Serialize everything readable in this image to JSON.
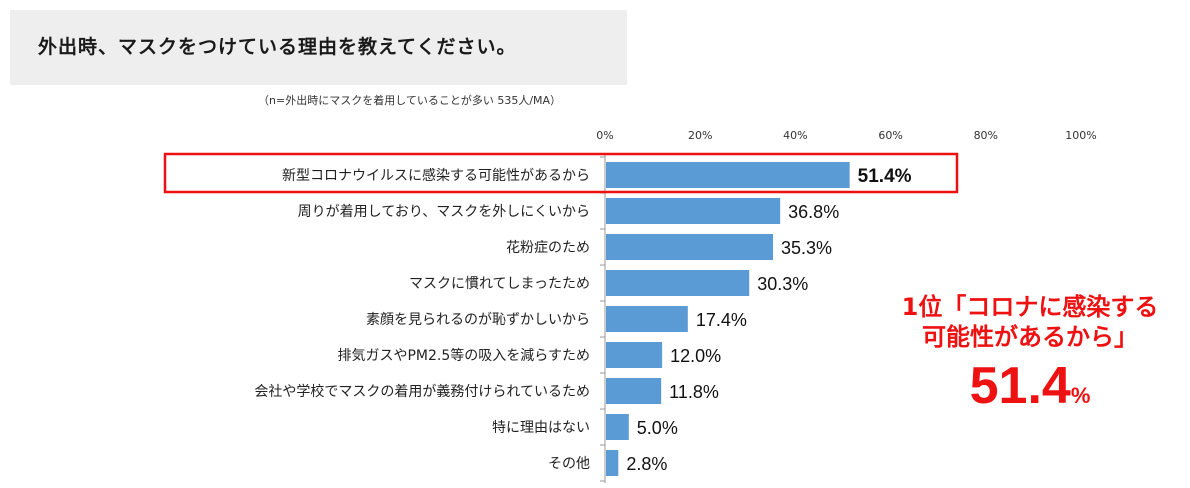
{
  "header": {
    "title": "外出時、マスクをつけている理由を教えてください。",
    "note": "（n=外出時にマスクを着用していることが多い 535人/MA）"
  },
  "chart_data": {
    "type": "bar",
    "orientation": "horizontal",
    "title": "外出時、マスクをつけている理由を教えてください。",
    "categories": [
      "新型コロナウイルスに感染する可能性があるから",
      "周りが着用しており、マスクを外しにくいから",
      "花粉症のため",
      "マスクに慣れてしまったため",
      "素顔を見られるのが恥ずかしいから",
      "排気ガスやPM2.5等の吸入を減らすため",
      "会社や学校でマスクの着用が義務付けられているため",
      "特に理由はない",
      "その他"
    ],
    "values": [
      51.4,
      36.8,
      35.3,
      30.3,
      17.4,
      12.0,
      11.8,
      5.0,
      2.8
    ],
    "value_labels": [
      "51.4%",
      "36.8%",
      "35.3%",
      "30.3%",
      "17.4%",
      "12.0%",
      "11.8%",
      "5.0%",
      "2.8%"
    ],
    "xlim": [
      0,
      100
    ],
    "xticks": [
      "0%",
      "20%",
      "40%",
      "60%",
      "80%",
      "100%"
    ],
    "xlabel": "",
    "ylabel": "",
    "grid": false,
    "highlight_index": 0,
    "colors": {
      "bar": "#5b9bd5",
      "highlight": "#ee1111",
      "axis": "#999999"
    }
  },
  "callout": {
    "line1": "1位「コロナに感染する",
    "line2": "可能性があるから」",
    "value": "51.4",
    "unit": "%"
  }
}
